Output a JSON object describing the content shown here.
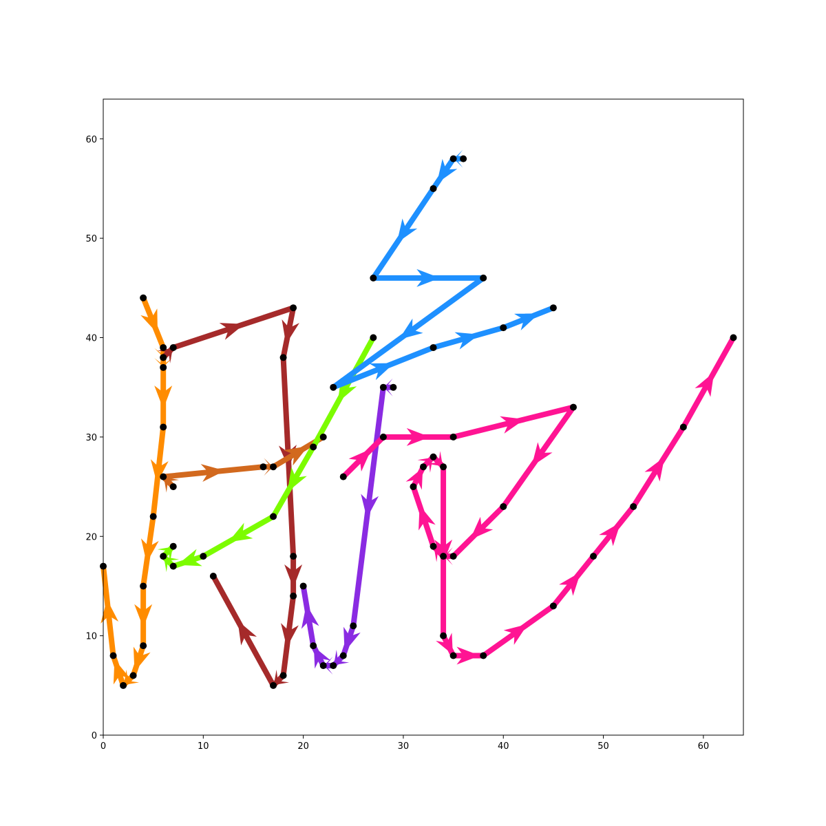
{
  "chart_data": {
    "type": "line",
    "title": "",
    "xlabel": "",
    "ylabel": "",
    "xlim": [
      0,
      64
    ],
    "ylim": [
      0,
      64
    ],
    "grid": false,
    "x_ticks": [
      0,
      10,
      20,
      30,
      40,
      50,
      60
    ],
    "y_ticks": [
      0,
      10,
      20,
      30,
      40,
      50,
      60
    ],
    "x_tick_labels": [
      "0",
      "10",
      "20",
      "30",
      "40",
      "50",
      "60"
    ],
    "y_tick_labels": [
      "0",
      "10",
      "20",
      "30",
      "40",
      "50",
      "60"
    ],
    "series": [
      {
        "color": "#ff8c00",
        "points": [
          [
            4,
            44
          ],
          [
            6,
            39
          ],
          [
            6,
            38
          ],
          [
            6,
            37
          ],
          [
            6,
            31
          ],
          [
            5,
            22
          ],
          [
            4,
            15
          ],
          [
            4,
            9
          ],
          [
            3,
            6
          ],
          [
            2,
            5
          ],
          [
            1,
            8
          ],
          [
            0,
            17
          ]
        ]
      },
      {
        "color": "#a52a2a",
        "points": [
          [
            6,
            38
          ],
          [
            7,
            39
          ],
          [
            19,
            43
          ],
          [
            18,
            38
          ],
          [
            19,
            18
          ],
          [
            19,
            14
          ],
          [
            18,
            6
          ],
          [
            17,
            5
          ],
          [
            11,
            16
          ]
        ]
      },
      {
        "color": "#d2691e",
        "points": [
          [
            7,
            25
          ],
          [
            6,
            26
          ],
          [
            16,
            27
          ],
          [
            17,
            27
          ],
          [
            22,
            30
          ]
        ]
      },
      {
        "color": "#7cfc00",
        "points": [
          [
            27,
            40
          ],
          [
            21,
            29
          ],
          [
            17,
            22
          ],
          [
            10,
            18
          ],
          [
            7,
            17
          ],
          [
            6,
            18
          ],
          [
            7,
            19
          ]
        ]
      },
      {
        "color": "#1e90ff",
        "points": [
          [
            36,
            58
          ],
          [
            35,
            58
          ],
          [
            33,
            55
          ],
          [
            27,
            46
          ],
          [
            38,
            46
          ],
          [
            23,
            35
          ],
          [
            33,
            39
          ],
          [
            40,
            41
          ],
          [
            45,
            43
          ]
        ]
      },
      {
        "color": "#8a2be2",
        "points": [
          [
            29,
            35
          ],
          [
            28,
            35
          ],
          [
            25,
            11
          ],
          [
            24,
            8
          ],
          [
            23,
            7
          ],
          [
            22,
            7
          ],
          [
            21,
            9
          ],
          [
            20,
            15
          ]
        ]
      },
      {
        "color": "#ff1493",
        "points": [
          [
            24,
            26
          ],
          [
            28,
            30
          ],
          [
            35,
            30
          ],
          [
            47,
            33
          ],
          [
            40,
            23
          ],
          [
            35,
            18
          ],
          [
            34,
            18
          ],
          [
            33,
            19
          ],
          [
            31,
            25
          ],
          [
            32,
            27
          ],
          [
            33,
            28
          ],
          [
            34,
            27
          ],
          [
            34,
            10
          ],
          [
            35,
            8
          ],
          [
            38,
            8
          ],
          [
            45,
            13
          ],
          [
            49,
            18
          ],
          [
            53,
            23
          ],
          [
            58,
            31
          ],
          [
            63,
            40
          ]
        ]
      }
    ]
  }
}
